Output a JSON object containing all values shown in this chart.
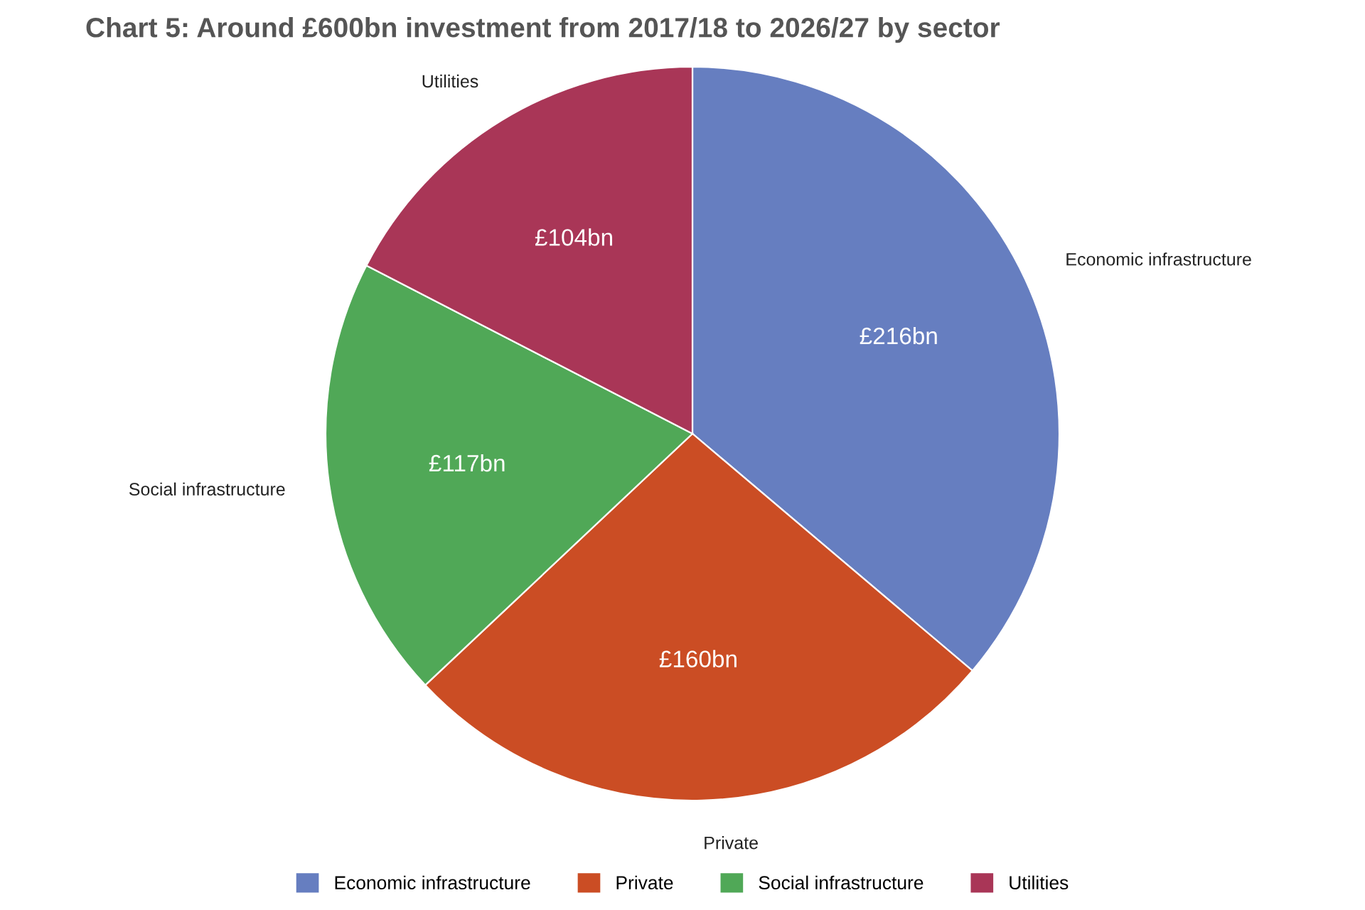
{
  "chart_data": {
    "type": "pie",
    "title": "Chart 5: Around £600bn investment from 2017/18 to 2026/27 by sector",
    "categories": [
      "Economic infrastructure",
      "Private",
      "Social infrastructure",
      "Utilities"
    ],
    "values": [
      216,
      160,
      117,
      104
    ],
    "value_labels": [
      "£216bn",
      "£160bn",
      "£117bn",
      "£104bn"
    ],
    "colors": [
      "#667ec0",
      "#cb4d24",
      "#50a857",
      "#a93657"
    ],
    "legend": "bottom"
  }
}
